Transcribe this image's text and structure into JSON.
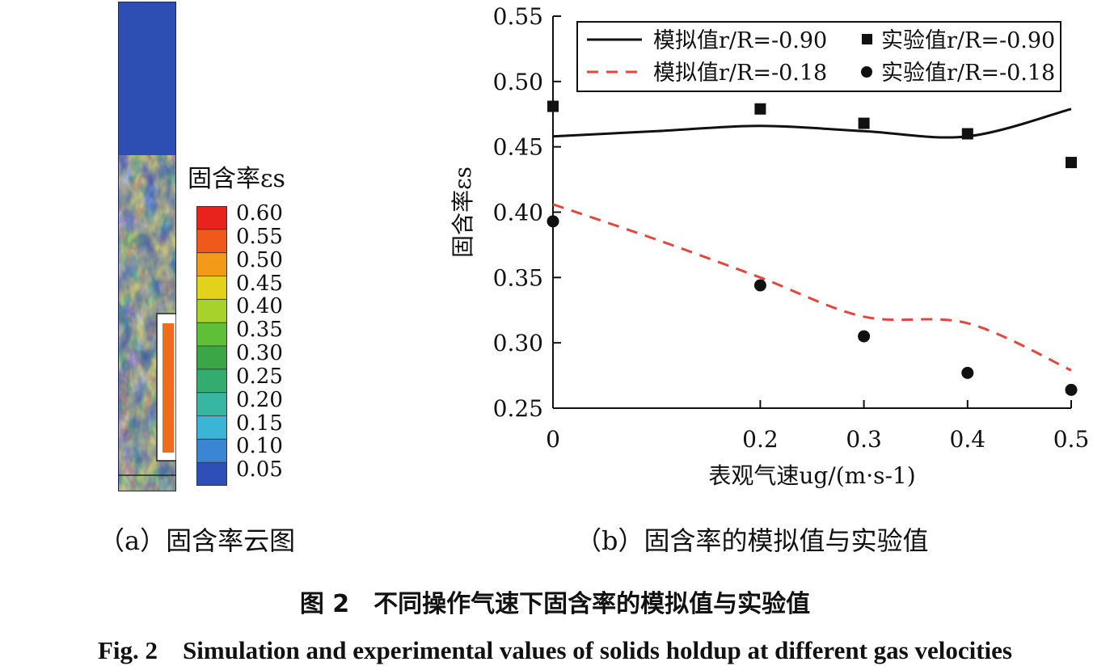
{
  "panel_a": {
    "colorbar_title": "固含率εs",
    "colorbar_ticks": [
      "0.60",
      "0.55",
      "0.50",
      "0.45",
      "0.40",
      "0.35",
      "0.30",
      "0.25",
      "0.20",
      "0.15",
      "0.10",
      "0.05"
    ],
    "colorbar_colors": [
      "#e8231e",
      "#ef5a1c",
      "#f39a1a",
      "#e3d21c",
      "#a7d22a",
      "#5fbf36",
      "#3aa646",
      "#32ad6f",
      "#37b7a2",
      "#3ab5d6",
      "#3a86d2",
      "#2e4fb8"
    ],
    "caption": "（a）固含率云图"
  },
  "panel_b": {
    "caption": "（b）固含率的模拟值与实验值"
  },
  "figure": {
    "caption_cn": "图 2　不同操作气速下固含率的模拟值与实验值",
    "caption_en": "Fig. 2　Simulation and experimental values of solids holdup at different gas velocities"
  },
  "chart_data": {
    "type": "line",
    "xlabel": "表观气速ug/(m·s-1)",
    "ylabel": "固含率εs",
    "xlim": [
      0,
      0.5
    ],
    "ylim": [
      0.25,
      0.55
    ],
    "x_ticks": [
      "0",
      "0.2",
      "0.3",
      "0.4",
      "0.5"
    ],
    "y_ticks": [
      "0.25",
      "0.30",
      "0.35",
      "0.40",
      "0.45",
      "0.50",
      "0.55"
    ],
    "x_tick_values": [
      0,
      0.2,
      0.3,
      0.4,
      0.5
    ],
    "legend": "top-right",
    "series": [
      {
        "name": "模拟值r/R=-0.90",
        "kind": "line",
        "style": "solid",
        "color": "#111111",
        "x": [
          0,
          0.1,
          0.2,
          0.3,
          0.4,
          0.5
        ],
        "y": [
          0.458,
          0.462,
          0.466,
          0.462,
          0.458,
          0.479
        ]
      },
      {
        "name": "实验值r/R=-0.90",
        "kind": "scatter",
        "marker": "square",
        "color": "#111111",
        "x": [
          0,
          0.2,
          0.3,
          0.4,
          0.5
        ],
        "y": [
          0.481,
          0.479,
          0.468,
          0.46,
          0.438
        ]
      },
      {
        "name": "模拟值r/R=-0.18",
        "kind": "line",
        "style": "dashed",
        "color": "#e2463c",
        "x": [
          0,
          0.1,
          0.2,
          0.3,
          0.4,
          0.5
        ],
        "y": [
          0.406,
          0.379,
          0.35,
          0.32,
          0.315,
          0.279
        ]
      },
      {
        "name": "实验值r/R=-0.18",
        "kind": "scatter",
        "marker": "circle",
        "color": "#111111",
        "x": [
          0,
          0.2,
          0.3,
          0.4,
          0.5
        ],
        "y": [
          0.393,
          0.344,
          0.305,
          0.277,
          0.264
        ]
      }
    ]
  }
}
